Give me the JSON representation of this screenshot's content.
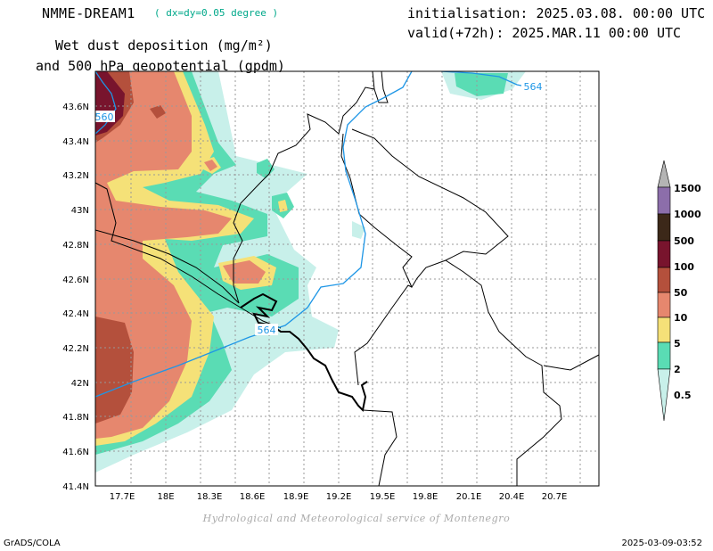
{
  "header": {
    "model_name": "NMME-DREAM1",
    "resolution": "( dx=dy=0.05 degree )",
    "initialisation": "initialisation: 2025.03.08. 00:00 UTC",
    "valid": "valid(+72h): 2025.MAR.11 00:00 UTC",
    "title_line1": "Wet dust deposition (mg/m²)",
    "title_line2": "and 500 hPa geopotential (gpdm)"
  },
  "map": {
    "lat_labels": [
      "43.6N",
      "43.4N",
      "43.2N",
      "43N",
      "42.8N",
      "42.6N",
      "42.4N",
      "42.2N",
      "42N",
      "41.8N",
      "41.6N",
      "41.4N"
    ],
    "lon_labels": [
      "17.7E",
      "18E",
      "18.3E",
      "18.6E",
      "18.9E",
      "19.2E",
      "19.5E",
      "19.8E",
      "20.1E",
      "20.4E",
      "20.7E"
    ],
    "contour_labels": [
      "564",
      "564",
      "560"
    ],
    "contour_color": "#1e96e6"
  },
  "legend": {
    "levels": [
      "1500",
      "1000",
      "500",
      "100",
      "50",
      "10",
      "5",
      "2",
      "0.5"
    ],
    "colors": {
      "c05": "#c8f0ea",
      "c2": "#5adcb4",
      "c5": "#f5e178",
      "c10": "#e6876e",
      "c50": "#b4503c",
      "c100": "#78142d",
      "c500": "#3c2819",
      "c1000": "#8c6eaa",
      "c1500": "#b4b4b4"
    }
  },
  "footer": {
    "credit": "Hydrological and Meteorological service of Montenegro",
    "left": "GrADS/COLA",
    "right": "2025-03-09-03:52"
  }
}
